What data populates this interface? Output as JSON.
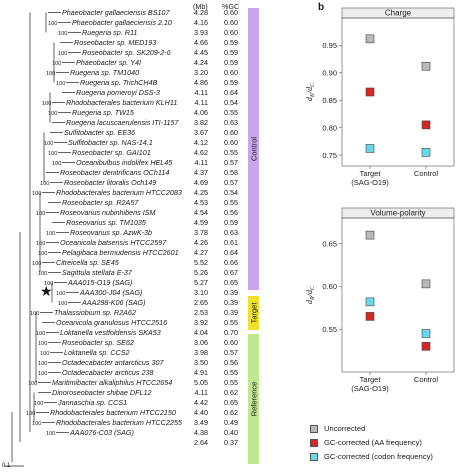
{
  "tree": {
    "headers": {
      "mb": "(Mb)",
      "gc": "%GC"
    },
    "scale": "0.1",
    "taxa": [
      {
        "name": "Phaeobacter gallaeciensis BS107",
        "mb": "4.28",
        "gc": "0.60",
        "bs": ""
      },
      {
        "name": "Phaeobacter gallaeciensis 2.10",
        "mb": "4.16",
        "gc": "0.60",
        "bs": "100"
      },
      {
        "name": "Ruegeria sp. R11",
        "mb": "3.93",
        "gc": "0.60",
        "bs": "100"
      },
      {
        "name": "Roseobacter sp. MED193",
        "mb": "4.66",
        "gc": "0.59",
        "bs": ""
      },
      {
        "name": "Roseobacter sp. SK209-2-6",
        "mb": "4.45",
        "gc": "0.59",
        "bs": "100"
      },
      {
        "name": "Phaeobacter sp. Y4I",
        "mb": "4.24",
        "gc": "0.59",
        "bs": "100"
      },
      {
        "name": "Ruegeria sp. TM1040",
        "mb": "3.20",
        "gc": "0.60",
        "bs": "100"
      },
      {
        "name": "Ruegeria sp. TrichCH4B",
        "mb": "4.86",
        "gc": "0.59",
        "bs": "100"
      },
      {
        "name": "Ruegeria pomeroyi DSS-3",
        "mb": "4.11",
        "gc": "0.64",
        "bs": ""
      },
      {
        "name": "Rhodobacterales bacterium KLH11",
        "mb": "4.11",
        "gc": "0.54",
        "bs": "100"
      },
      {
        "name": "Ruegeria sp. TW15",
        "mb": "4.06",
        "gc": "0.55",
        "bs": "100"
      },
      {
        "name": "Ruegeria lacuscaerulensis ITI-1157",
        "mb": "3.82",
        "gc": "0.63",
        "bs": ""
      },
      {
        "name": "Sulfitobacter sp. EE36",
        "mb": "3.67",
        "gc": "0.60",
        "bs": ""
      },
      {
        "name": "Sulfitobacter sp. NAS-14.1",
        "mb": "4.12",
        "gc": "0.60",
        "bs": "100"
      },
      {
        "name": "Roseobacter sp. GAI101",
        "mb": "4.62",
        "gc": "0.55",
        "bs": "100"
      },
      {
        "name": "Oceanibulbus indolifex HEL45",
        "mb": "4.11",
        "gc": "0.57",
        "bs": "100"
      },
      {
        "name": "Roseobacter denitrificans OCh114",
        "mb": "4.37",
        "gc": "0.58",
        "bs": ""
      },
      {
        "name": "Roseobacter litoralis Och149",
        "mb": "4.69",
        "gc": "0.57",
        "bs": "100"
      },
      {
        "name": "Rhodobacterales bacterium HTCC2083",
        "mb": "4.25",
        "gc": "0.54",
        "bs": "100"
      },
      {
        "name": "Roseobacter sp. R2A57",
        "mb": "4.53",
        "gc": "0.55",
        "bs": ""
      },
      {
        "name": "Roseovarius nubinhibens ISM",
        "mb": "4.54",
        "gc": "0.56",
        "bs": "100"
      },
      {
        "name": "Roseovarius sp. TM1035",
        "mb": "4.59",
        "gc": "0.59",
        "bs": ""
      },
      {
        "name": "Roseovarius sp. AzwK-3b",
        "mb": "3.78",
        "gc": "0.63",
        "bs": "100"
      },
      {
        "name": "Oceanicola batsensis HTCC2597",
        "mb": "4.26",
        "gc": "0.61",
        "bs": "100"
      },
      {
        "name": "Pelagibaca bermudensis HTCC2601",
        "mb": "4.27",
        "gc": "0.64",
        "bs": "100"
      },
      {
        "name": "Citreicella sp. SE45",
        "mb": "5.52",
        "gc": "0.66",
        "bs": "100"
      },
      {
        "name": "Sagittula stellata E-37",
        "mb": "5.26",
        "gc": "0.67",
        "bs": "100"
      },
      {
        "name": "AAA015-O19 (SAG)",
        "mb": "5.27",
        "gc": "0.65",
        "bs": "100"
      },
      {
        "name": "AAA300-J04 (SAG)",
        "mb": "3.10",
        "gc": "0.39",
        "bs": "100"
      },
      {
        "name": "AAA298-K06 (SAG)",
        "mb": "2.65",
        "gc": "0.39",
        "bs": "100"
      },
      {
        "name": "Thalassiobium sp. R2A62",
        "mb": "2.53",
        "gc": "0.39",
        "bs": "100"
      },
      {
        "name": "Oceanicola granulosus HTCC2516",
        "mb": "3.92",
        "gc": "0.55",
        "bs": ""
      },
      {
        "name": "Loktanella vestfoldensis SKA53",
        "mb": "4.04",
        "gc": "0.70",
        "bs": "100"
      },
      {
        "name": "Roseobacter sp. SE62",
        "mb": "3.06",
        "gc": "0.60",
        "bs": "100"
      },
      {
        "name": "Loktanella sp. CCS2",
        "mb": "3.98",
        "gc": "0.57",
        "bs": "100"
      },
      {
        "name": "Octadecabacter antarcticus 307",
        "mb": "3.50",
        "gc": "0.56",
        "bs": "100"
      },
      {
        "name": "Octadecabacter arcticus 238",
        "mb": "4.91",
        "gc": "0.55",
        "bs": "100"
      },
      {
        "name": "Maritimibacter alkaliphilus HTCC2654",
        "mb": "5.05",
        "gc": "0.55",
        "bs": "100"
      },
      {
        "name": "Dinoroseobacter shibae DFL12",
        "mb": "4.11",
        "gc": "0.62",
        "bs": ""
      },
      {
        "name": "Jannaschia sp. CCS1",
        "mb": "4.42",
        "gc": "0.65",
        "bs": "100"
      },
      {
        "name": "Rhodobacterales bacterium HTCC2150",
        "mb": "4.40",
        "gc": "0.62",
        "bs": "100"
      },
      {
        "name": "Rhodobacterales bacterium HTCC2255",
        "mb": "3.49",
        "gc": "0.49",
        "bs": "100"
      },
      {
        "name": "AAA076-C03 (SAG)",
        "mb": "4.38",
        "gc": "0.40",
        "bs": "100"
      },
      {
        "name": "",
        "mb": "2.64",
        "gc": "0.37",
        "bs": ""
      }
    ],
    "groups": [
      {
        "label": "Control",
        "color": "#c9a6ec"
      },
      {
        "label": "Target",
        "color": "#f2e12a"
      },
      {
        "label": "Reference",
        "color": "#bfe88e"
      }
    ]
  },
  "panel_label": "b",
  "legend": [
    {
      "label": "Uncorrected",
      "color": "#b9b9b9"
    },
    {
      "label": "GC-corrected (AA frequency)",
      "color": "#d62626"
    },
    {
      "label": "GC-corrected (codon frequency)",
      "color": "#6ad8ec"
    }
  ],
  "chart_data": [
    {
      "type": "scatter",
      "title": "Charge",
      "ylabel": "dK/dC",
      "ylabel_main": "d",
      "ylabel_sub1": "K",
      "ylabel_mid": "/d",
      "ylabel_sub2": "C",
      "categories": [
        "Target\n(SAG-O19)",
        "Control"
      ],
      "category_lines": [
        [
          "Target",
          "(SAG-O19)"
        ],
        [
          "Control"
        ]
      ],
      "ylim": [
        0.73,
        1.0
      ],
      "yticks": [
        "0.75",
        "0.80",
        "0.85",
        "0.90",
        "0.95"
      ],
      "ytick_values": [
        0.75,
        0.8,
        0.85,
        0.9,
        0.95
      ],
      "series": [
        {
          "name": "Uncorrected",
          "values": [
            0.962,
            0.912
          ]
        },
        {
          "name": "GC-corrected (AA frequency)",
          "values": [
            0.865,
            0.805
          ]
        },
        {
          "name": "GC-corrected (codon frequency)",
          "values": [
            0.762,
            0.755
          ]
        }
      ]
    },
    {
      "type": "scatter",
      "title": "Volume-polarity",
      "ylabel": "dR/dC",
      "ylabel_main": "d",
      "ylabel_sub1": "R",
      "ylabel_mid": "/d",
      "ylabel_sub2": "C",
      "categories": [
        "Target\n(SAG-O19)",
        "Control"
      ],
      "category_lines": [
        [
          "Target",
          "(SAG-O19)"
        ],
        [
          "Control"
        ]
      ],
      "ylim": [
        0.5,
        0.68
      ],
      "yticks": [
        "0.55",
        "0.60",
        "0.65"
      ],
      "ytick_values": [
        0.55,
        0.6,
        0.65
      ],
      "series": [
        {
          "name": "Uncorrected",
          "values": [
            0.66,
            0.603
          ]
        },
        {
          "name": "GC-corrected (AA frequency)",
          "values": [
            0.565,
            0.53
          ]
        },
        {
          "name": "GC-corrected (codon frequency)",
          "values": [
            0.582,
            0.545
          ]
        }
      ]
    }
  ]
}
